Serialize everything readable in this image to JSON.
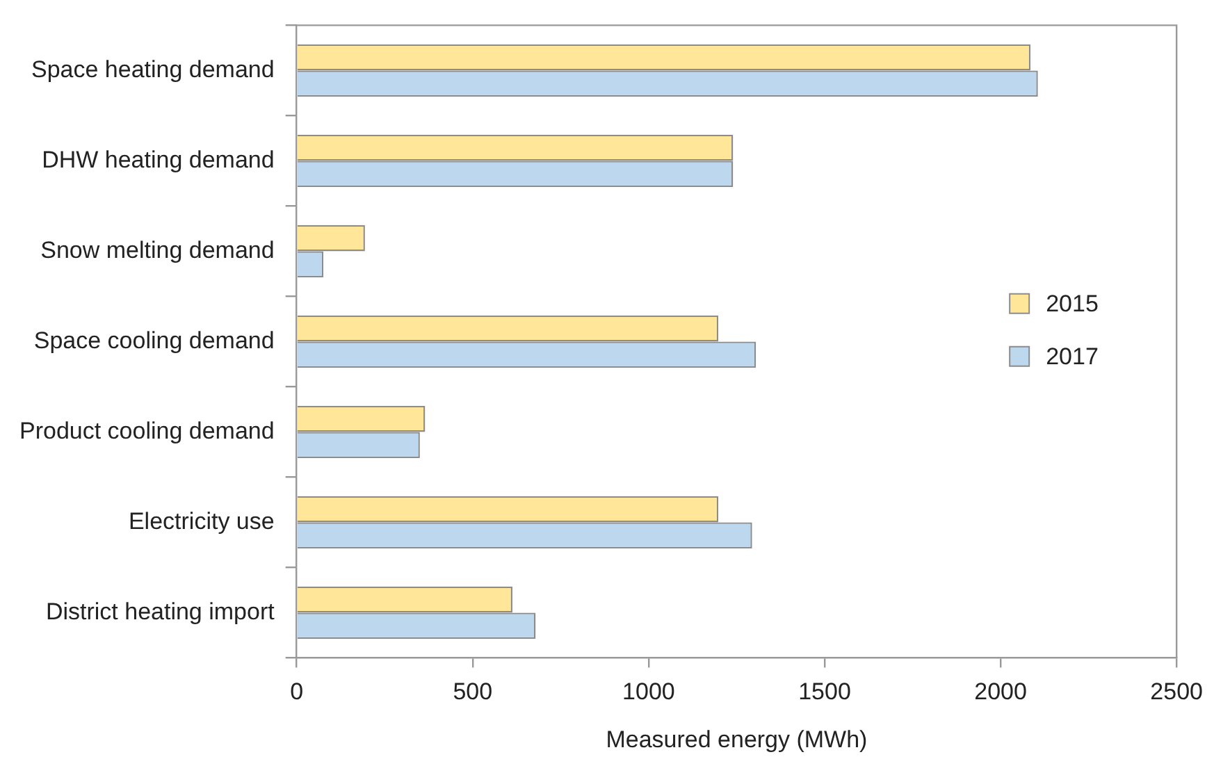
{
  "chart_data": {
    "type": "bar",
    "orientation": "horizontal",
    "xlabel": "Measured energy (MWh)",
    "categories": [
      "Space heating demand",
      "DHW heating demand",
      "Snow melting demand",
      "Space cooling demand",
      "Product cooling demand",
      "Electricity use",
      "District heating import"
    ],
    "series": [
      {
        "name": "2015",
        "color": "#ffe699",
        "values": [
          2085,
          1240,
          194,
          1198,
          365,
          1198,
          613
        ]
      },
      {
        "name": "2017",
        "color": "#bdd7ee",
        "values": [
          2106,
          1240,
          76,
          1305,
          350,
          1294,
          679
        ]
      }
    ],
    "xlim": [
      0,
      2500
    ],
    "xticks": [
      0,
      500,
      1000,
      1500,
      2000,
      2500
    ],
    "grid": false,
    "legend": "right"
  }
}
